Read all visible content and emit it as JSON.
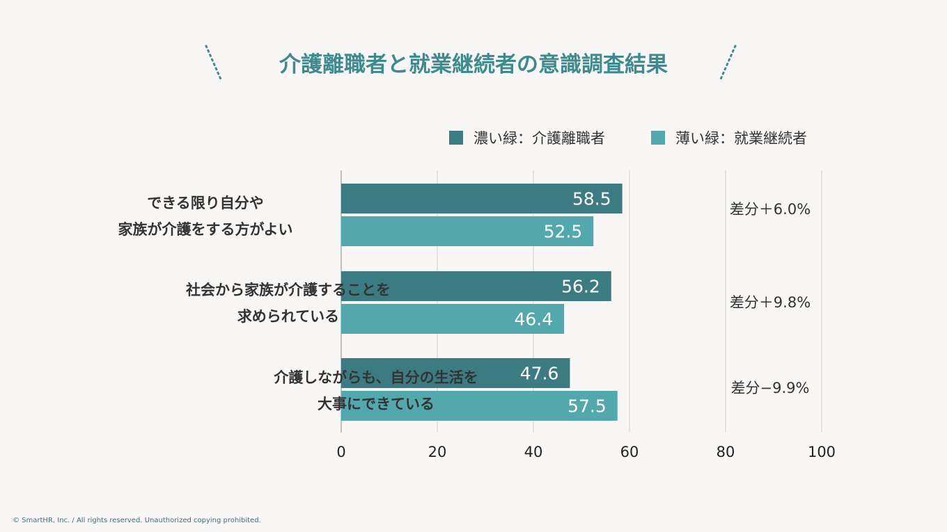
{
  "colors": {
    "dark": "#3c7b82",
    "light": "#52a8ad",
    "title": "#3f8a8f",
    "grid": "#d0d0d0",
    "axis": "#888888"
  },
  "footer": "© SmartHR, Inc. / All rights reserved. Unauthorized copying prohibited.",
  "chart_data": {
    "type": "bar",
    "orientation": "horizontal",
    "title": "介護離職者と就業継続者の意識調査結果",
    "legend_placement": "top-right",
    "categories": [
      [
        "できる限り自分や",
        "家族が介護をする方がよい"
      ],
      [
        "社会から家族が介護することを",
        "求められている"
      ],
      [
        "介護しながらも、自分の生活を",
        "大事にできている"
      ]
    ],
    "series": [
      {
        "name": "濃い緑：介護離職者",
        "values": [
          58.5,
          56.2,
          47.6
        ],
        "labels": [
          "58.5",
          "56.2",
          "47.6"
        ]
      },
      {
        "name": "薄い緑：就業継続者",
        "values": [
          52.5,
          46.4,
          57.5
        ],
        "labels": [
          "52.5",
          "46.4",
          "57.5"
        ]
      }
    ],
    "annotations": [
      "差分＋6.0%",
      "差分＋9.8%",
      "差分−9.9%"
    ],
    "xlim": [
      0,
      100
    ],
    "xticks": [
      "0",
      "20",
      "40",
      "60",
      "80",
      "100"
    ],
    "grid": true
  }
}
